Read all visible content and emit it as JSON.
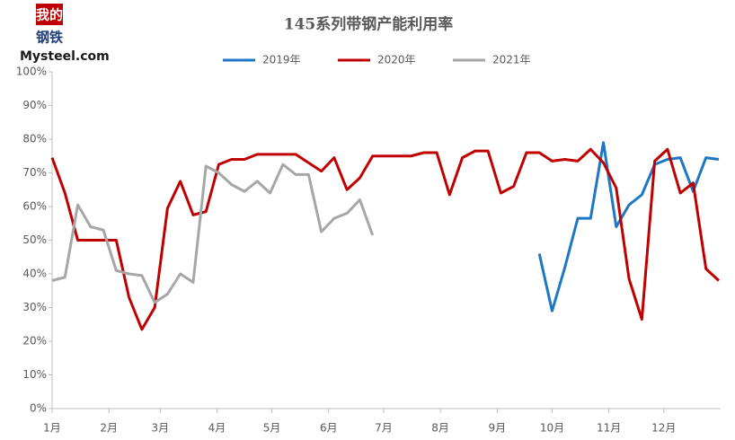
{
  "logo": {
    "top": "我的",
    "middle": "钢铁",
    "bottom": "Mysteel.com"
  },
  "chart_data": {
    "type": "line",
    "title": "145系列带钢产能利用率",
    "x": [
      0,
      7,
      14,
      21,
      28,
      35,
      42,
      49,
      56,
      63,
      70,
      77,
      84,
      91,
      98,
      105,
      112,
      119,
      126,
      133,
      140,
      147,
      154,
      161,
      168,
      175,
      182,
      189,
      196,
      203,
      210,
      217,
      224,
      231,
      238,
      245,
      252,
      259,
      266,
      273,
      280,
      287,
      294,
      301,
      308,
      315,
      322,
      329,
      336,
      343,
      350,
      357,
      364
    ],
    "xlim": [
      0,
      365
    ],
    "xticks": [
      {
        "value": 0,
        "label": "1月"
      },
      {
        "value": 31,
        "label": "2月"
      },
      {
        "value": 59,
        "label": "3月"
      },
      {
        "value": 90,
        "label": "4月"
      },
      {
        "value": 120,
        "label": "5月"
      },
      {
        "value": 151,
        "label": "6月"
      },
      {
        "value": 181,
        "label": "7月"
      },
      {
        "value": 212,
        "label": "8月"
      },
      {
        "value": 243,
        "label": "9月"
      },
      {
        "value": 273,
        "label": "10月"
      },
      {
        "value": 304,
        "label": "11月"
      },
      {
        "value": 334,
        "label": "12月"
      }
    ],
    "ylim": [
      0,
      100
    ],
    "yticks": [
      {
        "value": 0,
        "label": "0%"
      },
      {
        "value": 10,
        "label": "10%"
      },
      {
        "value": 20,
        "label": "20%"
      },
      {
        "value": 30,
        "label": "30%"
      },
      {
        "value": 40,
        "label": "40%"
      },
      {
        "value": 50,
        "label": "50%"
      },
      {
        "value": 60,
        "label": "60%"
      },
      {
        "value": 70,
        "label": "70%"
      },
      {
        "value": 80,
        "label": "80%"
      },
      {
        "value": 90,
        "label": "90%"
      },
      {
        "value": 100,
        "label": "100%"
      }
    ],
    "grid": false,
    "series": [
      {
        "name": "2019年",
        "color": "#1f77c4",
        "values": [
          null,
          null,
          null,
          null,
          null,
          null,
          null,
          null,
          null,
          null,
          null,
          null,
          null,
          null,
          null,
          null,
          null,
          null,
          null,
          null,
          null,
          null,
          null,
          null,
          null,
          null,
          null,
          null,
          null,
          null,
          null,
          null,
          null,
          null,
          null,
          null,
          null,
          null,
          46,
          29,
          42,
          56.5,
          56.5,
          79,
          54,
          60.5,
          63.5,
          72.5,
          74,
          74.5,
          64.5,
          74.5,
          74
        ]
      },
      {
        "name": "2020年",
        "color": "#c00000",
        "values": [
          74.5,
          64,
          50,
          50,
          50,
          50,
          33,
          23.5,
          30,
          59.5,
          67.5,
          57.5,
          58.5,
          72.5,
          74,
          74,
          75.5,
          75.5,
          75.5,
          75.5,
          73,
          70.5,
          74.5,
          65,
          68.5,
          75,
          75,
          75,
          75,
          76,
          76,
          63.5,
          74.5,
          76.5,
          76.5,
          64,
          66,
          76,
          76,
          73.5,
          74,
          73.5,
          77,
          73,
          65.5,
          38.5,
          26.5,
          73.5,
          77,
          64,
          67,
          41.5,
          38
        ]
      },
      {
        "name": "2021年",
        "color": "#a6a6a6",
        "values": [
          38,
          39,
          60.5,
          54,
          53,
          41,
          40,
          39.5,
          31.5,
          34,
          40,
          37.5,
          72,
          70,
          66.5,
          64.5,
          67.5,
          64,
          72.5,
          69.5,
          69.5,
          52.5,
          56.5,
          58,
          62,
          51.5,
          null,
          null,
          null,
          null,
          null,
          null,
          null,
          null,
          null,
          null,
          null,
          null,
          null,
          null,
          null,
          null,
          null,
          null,
          null,
          null,
          null,
          null,
          null,
          null,
          null,
          null,
          null
        ]
      }
    ]
  }
}
